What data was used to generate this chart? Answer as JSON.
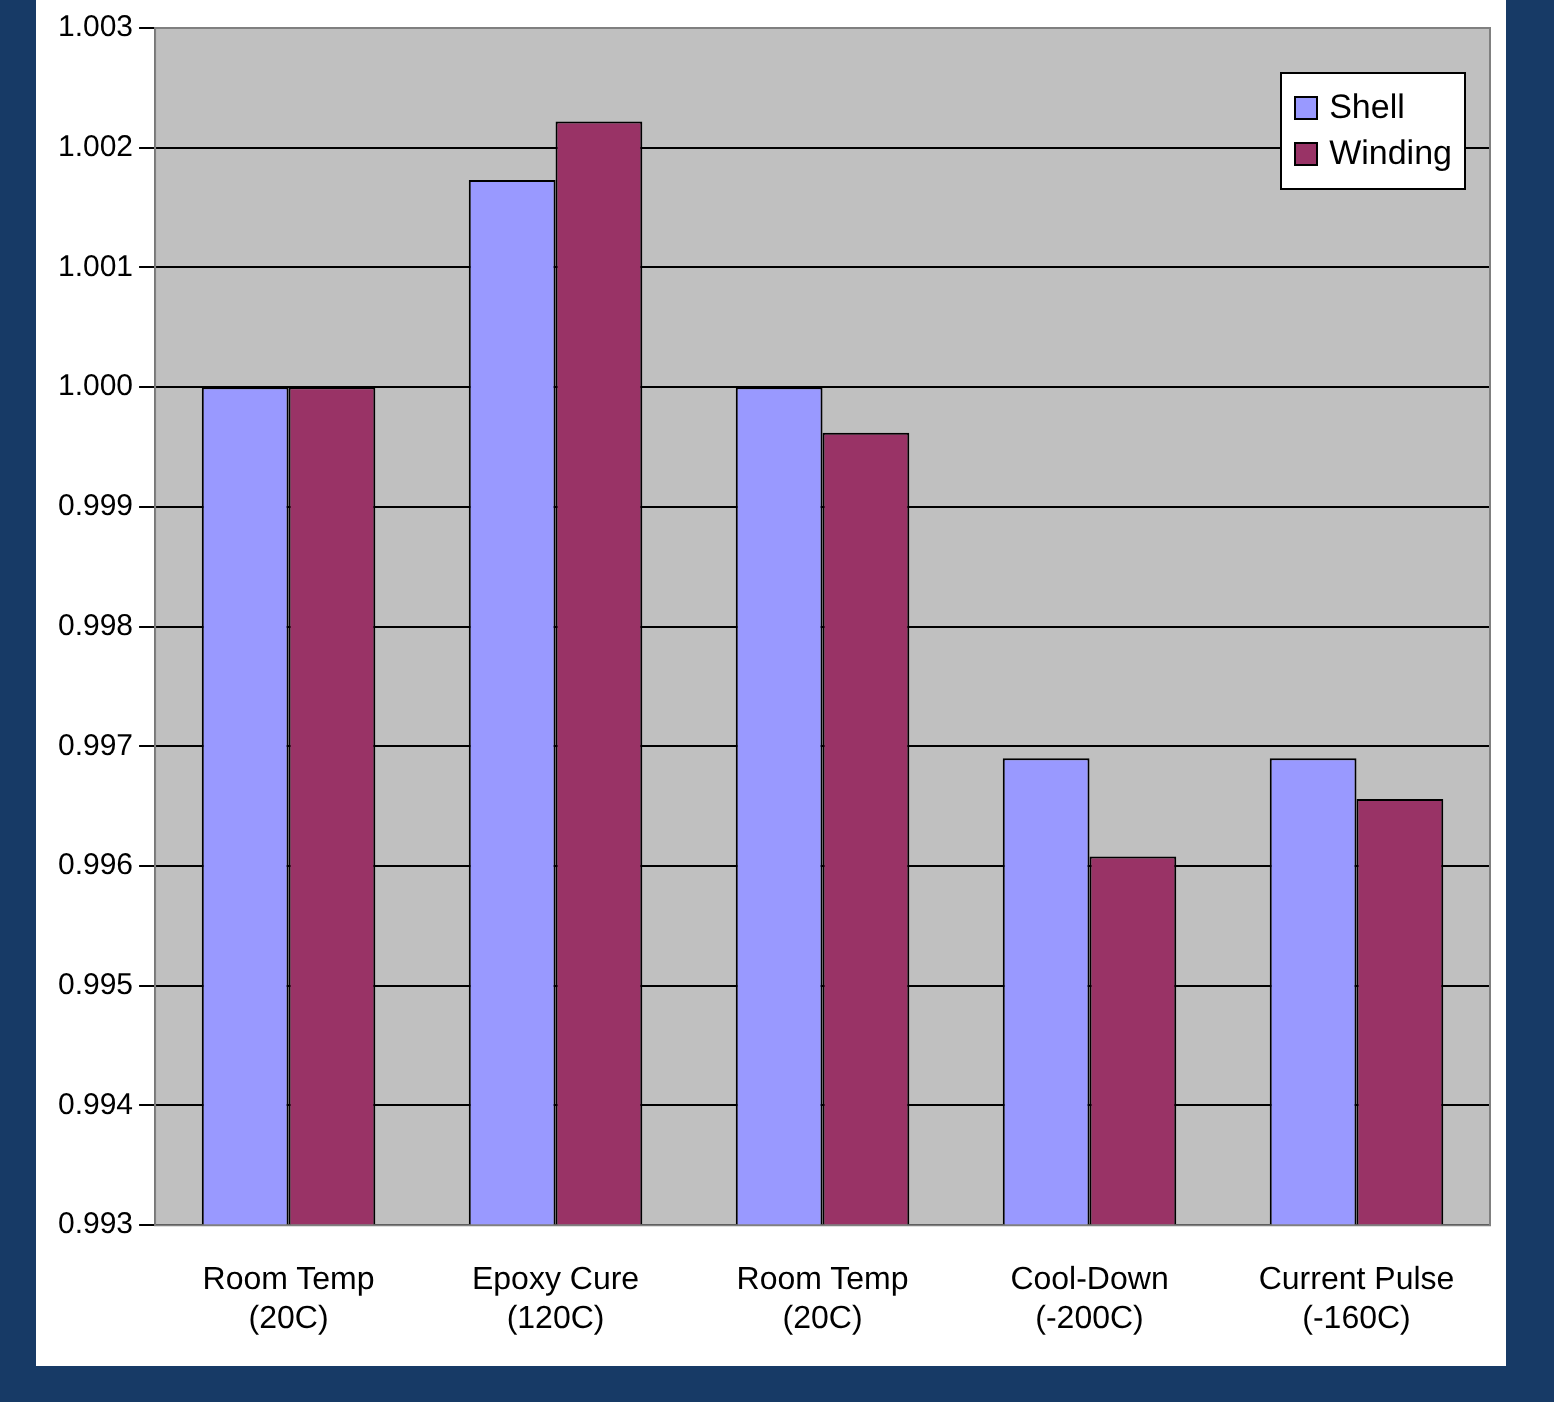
{
  "chart_data": {
    "type": "bar",
    "categories": [
      "Room Temp\n(20C)",
      "Epoxy Cure\n(120C)",
      "Room Temp\n(20C)",
      "Cool-Down\n(-200C)",
      "Current Pulse\n(-160C)"
    ],
    "series": [
      {
        "name": "Shell",
        "color": "#9999ff",
        "values": [
          1.0,
          1.00173,
          1.0,
          0.9969,
          0.9969
        ]
      },
      {
        "name": "Winding",
        "color": "#993366",
        "values": [
          1.0,
          1.00222,
          0.99962,
          0.99608,
          0.99656
        ]
      }
    ],
    "ylim": [
      0.993,
      1.003
    ],
    "yticks": [
      0.993,
      0.994,
      0.995,
      0.996,
      0.997,
      0.998,
      0.999,
      {
        "value": 1,
        "label": "1.000"
      },
      1.001,
      1.002,
      1.003
    ],
    "grid": "y",
    "legend": "top right"
  }
}
